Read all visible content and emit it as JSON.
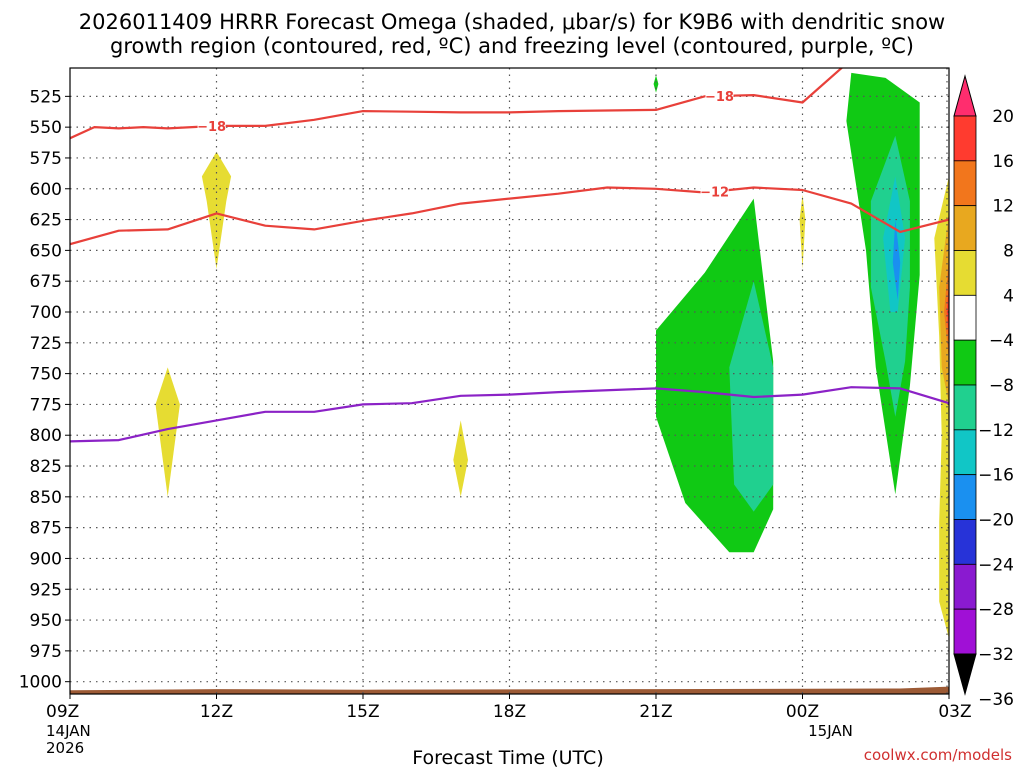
{
  "chart_data": {
    "type": "time-height",
    "title_line1": "2026011409 HRRR Forecast Omega (shaded, μbar/s) for K9B6 with dendritic snow",
    "title_line2": "growth region (contoured, red, ºC) and freezing level (contoured, purple, ºC)",
    "xlabel": "Forecast Time (UTC)",
    "credit": "coolwx.com/models",
    "x_hours": [
      0,
      18
    ],
    "y_range_hpa": [
      1010,
      502
    ],
    "x_ticks": [
      {
        "hour": 0,
        "label": "09Z",
        "sub1": "14JAN",
        "sub2": "2026"
      },
      {
        "hour": 3,
        "label": "12Z"
      },
      {
        "hour": 6,
        "label": "15Z"
      },
      {
        "hour": 9,
        "label": "18Z"
      },
      {
        "hour": 12,
        "label": "21Z"
      },
      {
        "hour": 15,
        "label": "00Z",
        "sub1": "15JAN"
      },
      {
        "hour": 18,
        "label": "03Z"
      }
    ],
    "y_ticks": [
      525,
      550,
      575,
      600,
      625,
      650,
      675,
      700,
      725,
      750,
      775,
      800,
      825,
      850,
      875,
      900,
      925,
      950,
      975,
      1000
    ],
    "colorbar": [
      {
        "label": "20",
        "color": "#ff2d6e"
      },
      {
        "label": "16",
        "color": "#ff3b2f"
      },
      {
        "label": "12",
        "color": "#f2761c"
      },
      {
        "label": "8",
        "color": "#e8a81f"
      },
      {
        "label": "4",
        "color": "#e6dc32"
      },
      {
        "label": "-4",
        "color": "#ffffff"
      },
      {
        "label": "-8",
        "color": "#10c914"
      },
      {
        "label": "-12",
        "color": "#20d08f"
      },
      {
        "label": "-16",
        "color": "#11c6c6"
      },
      {
        "label": "-20",
        "color": "#1a90f0"
      },
      {
        "label": "-24",
        "color": "#2733d8"
      },
      {
        "label": "-28",
        "color": "#8a1ad0"
      },
      {
        "label": "-32",
        "color": "#a010d6"
      },
      {
        "label": "-36",
        "color": "#aaaaaa"
      }
    ],
    "contours": [
      {
        "name": "-18",
        "label": "−18",
        "color": "#e8403a",
        "points": [
          [
            0,
            559
          ],
          [
            0.5,
            550
          ],
          [
            1,
            551
          ],
          [
            1.5,
            550
          ],
          [
            2,
            551
          ],
          [
            3,
            549
          ],
          [
            4,
            549
          ],
          [
            5,
            544
          ],
          [
            6,
            537
          ],
          [
            7,
            537.5
          ],
          [
            8,
            538
          ],
          [
            9,
            538
          ],
          [
            10,
            537
          ],
          [
            12,
            536
          ],
          [
            13,
            525
          ],
          [
            14,
            524
          ],
          [
            15,
            530
          ],
          [
            16,
            495
          ]
        ]
      },
      {
        "name": "-12",
        "label": "−12",
        "color": "#e8403a",
        "points": [
          [
            0,
            645
          ],
          [
            1,
            634
          ],
          [
            2,
            633
          ],
          [
            3,
            620
          ],
          [
            4,
            630
          ],
          [
            5,
            633
          ],
          [
            6,
            626
          ],
          [
            7,
            620
          ],
          [
            8,
            612
          ],
          [
            9,
            608
          ],
          [
            10,
            604
          ],
          [
            11,
            599
          ],
          [
            12,
            600
          ],
          [
            13,
            603
          ],
          [
            14,
            599
          ],
          [
            15,
            601
          ],
          [
            16,
            612
          ],
          [
            17,
            635
          ],
          [
            18,
            625
          ],
          [
            18.2,
            580
          ],
          [
            18.4,
            567
          ]
        ]
      },
      {
        "name": "0",
        "label": "",
        "color": "#8b22c6",
        "points": [
          [
            0,
            805
          ],
          [
            1,
            804
          ],
          [
            2,
            795
          ],
          [
            3,
            788
          ],
          [
            4,
            781
          ],
          [
            5,
            781
          ],
          [
            6,
            775
          ],
          [
            7,
            774
          ],
          [
            8,
            768
          ],
          [
            9,
            767
          ],
          [
            10,
            765
          ],
          [
            12,
            762
          ],
          [
            13,
            765
          ],
          [
            14,
            769
          ],
          [
            15,
            767
          ],
          [
            16,
            761
          ],
          [
            17,
            762
          ],
          [
            18,
            774
          ]
        ]
      }
    ],
    "shaded": [
      {
        "value": "4",
        "color": "#e6dc32",
        "points": [
          [
            3,
            570
          ],
          [
            2.7,
            590
          ],
          [
            2.8,
            610
          ],
          [
            3,
            665
          ],
          [
            3.2,
            610
          ],
          [
            3.3,
            590
          ]
        ]
      },
      {
        "value": "4",
        "color": "#e6dc32",
        "points": [
          [
            2,
            745
          ],
          [
            1.75,
            775
          ],
          [
            1.9,
            820
          ],
          [
            2,
            850
          ],
          [
            2.1,
            820
          ],
          [
            2.25,
            775
          ]
        ]
      },
      {
        "value": "4",
        "color": "#e6dc32",
        "points": [
          [
            8,
            788
          ],
          [
            7.85,
            820
          ],
          [
            8,
            850
          ],
          [
            8.15,
            820
          ]
        ]
      },
      {
        "value": "4",
        "color": "#e6dc32",
        "points": [
          [
            15,
            605
          ],
          [
            14.94,
            625
          ],
          [
            15,
            665
          ],
          [
            15.06,
            625
          ]
        ]
      },
      {
        "value": "-4",
        "color": "#10c914",
        "points": [
          [
            12,
            508
          ],
          [
            11.95,
            515
          ],
          [
            12,
            522
          ],
          [
            12.05,
            515
          ]
        ]
      },
      {
        "value": "-4",
        "color": "#10c914",
        "points": [
          [
            14,
            608
          ],
          [
            13,
            668
          ],
          [
            12,
            715
          ],
          [
            12,
            785
          ],
          [
            12.6,
            855
          ],
          [
            13.5,
            895
          ],
          [
            14,
            895
          ],
          [
            14.4,
            860
          ],
          [
            14.4,
            740
          ],
          [
            14,
            608
          ]
        ]
      },
      {
        "value": "-4",
        "color": "#10c914",
        "points": [
          [
            16,
            506
          ],
          [
            16.7,
            510
          ],
          [
            17.4,
            530
          ],
          [
            17.4,
            670
          ],
          [
            17.2,
            760
          ],
          [
            16.9,
            848
          ],
          [
            16.5,
            745
          ],
          [
            16.3,
            650
          ],
          [
            15.9,
            545
          ]
        ]
      },
      {
        "value": "-8",
        "color": "#20d08f",
        "points": [
          [
            14,
            675
          ],
          [
            13.5,
            745
          ],
          [
            13.6,
            840
          ],
          [
            14,
            862
          ],
          [
            14.4,
            840
          ],
          [
            14.4,
            745
          ]
        ]
      },
      {
        "value": "-8",
        "color": "#20d08f",
        "points": [
          [
            16.9,
            557
          ],
          [
            16.4,
            610
          ],
          [
            16.4,
            680
          ],
          [
            16.7,
            740
          ],
          [
            16.9,
            785
          ],
          [
            17.1,
            740
          ],
          [
            17.2,
            680
          ],
          [
            17.2,
            610
          ]
        ]
      },
      {
        "value": "-12",
        "color": "#11c6c6",
        "points": [
          [
            16.9,
            590
          ],
          [
            16.65,
            640
          ],
          [
            16.8,
            700
          ],
          [
            16.95,
            700
          ],
          [
            17.1,
            640
          ]
        ]
      },
      {
        "value": "-16",
        "color": "#1a90f0",
        "points": [
          [
            16.9,
            625
          ],
          [
            16.85,
            660
          ],
          [
            16.95,
            690
          ],
          [
            17.0,
            660
          ]
        ]
      },
      {
        "value": "4",
        "color": "#e6dc32",
        "points": [
          [
            18,
            590
          ],
          [
            17.7,
            640
          ],
          [
            17.8,
            720
          ],
          [
            17.85,
            800
          ],
          [
            17.8,
            870
          ],
          [
            17.8,
            935
          ],
          [
            18,
            965
          ]
        ]
      },
      {
        "value": "8",
        "color": "#e8a81f",
        "points": [
          [
            18,
            620
          ],
          [
            17.8,
            680
          ],
          [
            17.85,
            745
          ],
          [
            18,
            775
          ]
        ]
      },
      {
        "value": "12",
        "color": "#f2761c",
        "points": [
          [
            18,
            655
          ],
          [
            17.9,
            700
          ],
          [
            18,
            740
          ]
        ]
      },
      {
        "value": "16",
        "color": "#ff3b2f",
        "points": [
          [
            18,
            675
          ],
          [
            17.95,
            700
          ],
          [
            18,
            728
          ]
        ]
      }
    ],
    "terrain": [
      {
        "hour": 0,
        "hpa": 1007
      },
      {
        "hour": 3,
        "hpa": 1006
      },
      {
        "hour": 6,
        "hpa": 1006.5
      },
      {
        "hour": 12,
        "hpa": 1006
      },
      {
        "hour": 17,
        "hpa": 1005.5
      },
      {
        "hour": 18,
        "hpa": 1004
      }
    ]
  }
}
